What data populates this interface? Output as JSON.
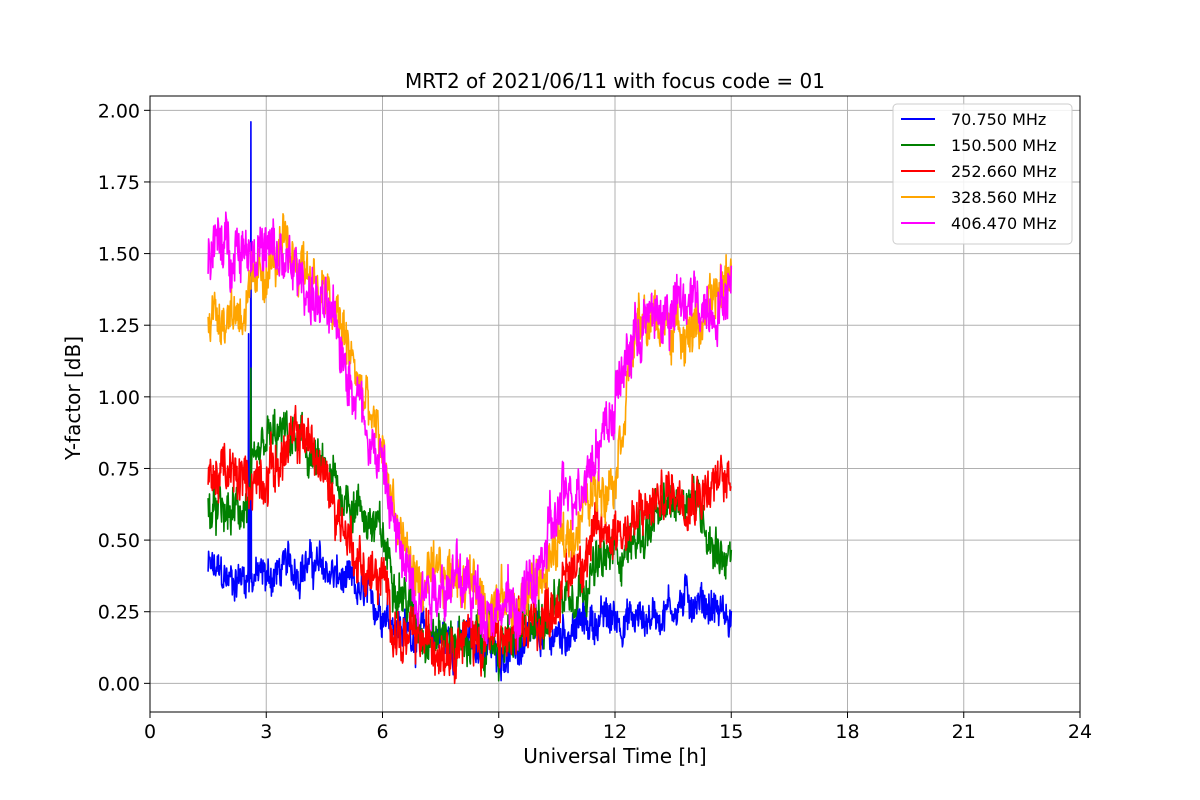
{
  "chart_data": {
    "type": "line",
    "title": "MRT2 of 2021/06/11 with focus code = 01",
    "xlabel": "Universal Time [h]",
    "ylabel": "Y-factor [dB]",
    "xlim": [
      0,
      24
    ],
    "ylim": [
      -0.1,
      2.05
    ],
    "xticks": [
      0,
      3,
      6,
      9,
      12,
      15,
      18,
      21,
      24
    ],
    "xtick_labels": [
      "0",
      "3",
      "6",
      "9",
      "12",
      "15",
      "18",
      "21",
      "24"
    ],
    "yticks": [
      0.0,
      0.25,
      0.5,
      0.75,
      1.0,
      1.25,
      1.5,
      1.75,
      2.0
    ],
    "ytick_labels": [
      "0.00",
      "0.25",
      "0.50",
      "0.75",
      "1.00",
      "1.25",
      "1.50",
      "1.75",
      "2.00"
    ],
    "grid": true,
    "legend_position": "top-right",
    "series": [
      {
        "name": " 70.750 MHz",
        "color": "#0000ff",
        "noise": 0.06,
        "x": [
          1.5,
          2.0,
          2.5,
          3.0,
          3.5,
          4.0,
          4.5,
          5.0,
          5.5,
          6.0,
          6.5,
          7.0,
          7.5,
          8.0,
          8.5,
          9.0,
          9.5,
          10.0,
          10.5,
          11.0,
          11.5,
          12.0,
          12.5,
          13.0,
          13.5,
          14.0,
          14.5,
          15.0
        ],
        "y": [
          0.4,
          0.36,
          0.38,
          0.37,
          0.4,
          0.42,
          0.4,
          0.35,
          0.3,
          0.27,
          0.2,
          0.17,
          0.16,
          0.15,
          0.14,
          0.12,
          0.12,
          0.15,
          0.17,
          0.2,
          0.22,
          0.23,
          0.22,
          0.24,
          0.27,
          0.3,
          0.27,
          0.22
        ],
        "spikes": [
          {
            "x": 2.6,
            "y": 1.96
          },
          {
            "x": 2.55,
            "y": 1.22
          }
        ]
      },
      {
        "name": "150.500 MHz",
        "color": "#008000",
        "noise": 0.07,
        "x": [
          1.5,
          2.0,
          2.5,
          3.0,
          3.5,
          4.0,
          4.5,
          5.0,
          5.5,
          6.0,
          6.5,
          7.0,
          7.5,
          8.0,
          8.5,
          9.0,
          9.5,
          10.0,
          10.5,
          11.0,
          11.5,
          12.0,
          12.5,
          13.0,
          13.5,
          14.0,
          14.5,
          15.0
        ],
        "y": [
          0.6,
          0.58,
          0.62,
          0.84,
          0.86,
          0.82,
          0.72,
          0.66,
          0.6,
          0.5,
          0.32,
          0.2,
          0.17,
          0.15,
          0.14,
          0.13,
          0.15,
          0.22,
          0.3,
          0.34,
          0.4,
          0.45,
          0.5,
          0.55,
          0.63,
          0.68,
          0.5,
          0.42
        ],
        "spikes": [
          {
            "x": 2.6,
            "y": 1.1
          }
        ]
      },
      {
        "name": "252.660 MHz",
        "color": "#ff0000",
        "noise": 0.08,
        "x": [
          1.5,
          2.0,
          2.5,
          3.0,
          3.5,
          4.0,
          4.5,
          5.0,
          5.5,
          6.0,
          6.5,
          7.0,
          7.5,
          8.0,
          8.5,
          9.0,
          9.5,
          10.0,
          10.5,
          11.0,
          11.5,
          12.0,
          12.5,
          13.0,
          13.5,
          14.0,
          14.5,
          15.0
        ],
        "y": [
          0.74,
          0.72,
          0.7,
          0.74,
          0.8,
          0.88,
          0.72,
          0.55,
          0.4,
          0.35,
          0.14,
          0.14,
          0.15,
          0.17,
          0.16,
          0.14,
          0.15,
          0.22,
          0.3,
          0.44,
          0.5,
          0.55,
          0.55,
          0.62,
          0.68,
          0.68,
          0.68,
          0.72
        ],
        "spikes": []
      },
      {
        "name": "328.560 MHz",
        "color": "#ffa500",
        "noise": 0.08,
        "x": [
          1.5,
          2.0,
          2.5,
          3.0,
          3.5,
          4.0,
          4.5,
          5.0,
          5.5,
          6.0,
          6.5,
          7.0,
          7.5,
          8.0,
          8.5,
          9.0,
          9.5,
          10.0,
          10.5,
          11.0,
          11.5,
          12.0,
          12.5,
          13.0,
          13.5,
          14.0,
          14.5,
          15.0
        ],
        "y": [
          1.3,
          1.3,
          1.32,
          1.45,
          1.5,
          1.47,
          1.35,
          1.22,
          1.0,
          0.8,
          0.5,
          0.32,
          0.36,
          0.4,
          0.32,
          0.28,
          0.26,
          0.36,
          0.46,
          0.56,
          0.68,
          0.75,
          1.22,
          1.27,
          1.25,
          1.24,
          1.3,
          1.45
        ],
        "spikes": []
      },
      {
        "name": "406.470 MHz",
        "color": "#ff00ff",
        "noise": 0.09,
        "x": [
          1.5,
          2.0,
          2.5,
          3.0,
          3.5,
          4.0,
          4.5,
          5.0,
          5.5,
          6.0,
          6.5,
          7.0,
          7.5,
          8.0,
          8.5,
          9.0,
          9.5,
          10.0,
          10.5,
          11.0,
          11.5,
          12.0,
          12.5,
          13.0,
          13.5,
          14.0,
          14.5,
          15.0
        ],
        "y": [
          1.52,
          1.52,
          1.55,
          1.5,
          1.46,
          1.4,
          1.3,
          1.15,
          0.95,
          0.75,
          0.42,
          0.34,
          0.36,
          0.36,
          0.3,
          0.27,
          0.25,
          0.38,
          0.58,
          0.7,
          0.82,
          0.98,
          1.22,
          1.28,
          1.3,
          1.33,
          1.32,
          1.38
        ],
        "spikes": []
      }
    ]
  }
}
